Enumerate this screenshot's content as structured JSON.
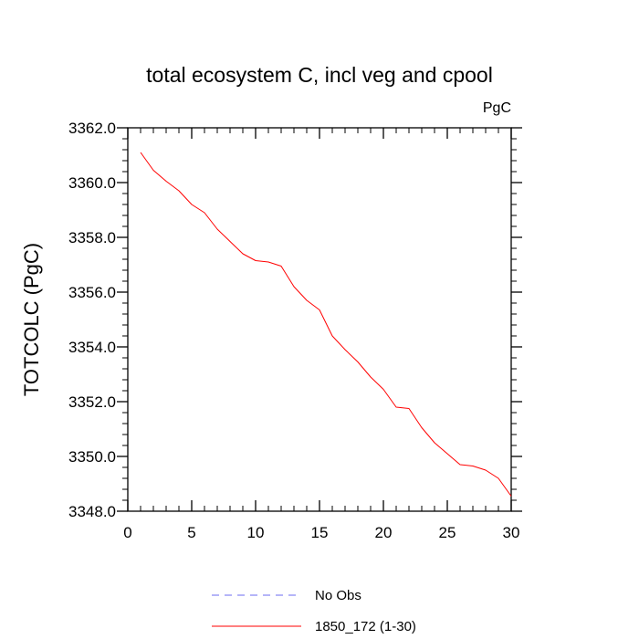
{
  "chart_data": {
    "type": "line",
    "title": "total ecosystem C, incl veg and cpool",
    "units": "PgC",
    "xlabel": "",
    "ylabel": "TOTCOLC  (PgC)",
    "xlim": [
      0,
      30
    ],
    "ylim": [
      3348.0,
      3362.0
    ],
    "x_ticks": [
      0,
      5,
      10,
      15,
      20,
      25,
      30
    ],
    "y_ticks": [
      3348.0,
      3350.0,
      3352.0,
      3354.0,
      3356.0,
      3358.0,
      3360.0,
      3362.0
    ],
    "y_tick_labels": [
      "3348.0",
      "3350.0",
      "3352.0",
      "3354.0",
      "3356.0",
      "3358.0",
      "3360.0",
      "3362.0"
    ],
    "grid": false,
    "legend_position": "bottom",
    "series": [
      {
        "name": "No Obs",
        "color": "#6b6bf0",
        "style": "dashed",
        "x": [],
        "values": []
      },
      {
        "name": "1850_172 (1-30)",
        "color": "#ff0000",
        "style": "solid",
        "x": [
          1,
          2,
          3,
          4,
          5,
          6,
          7,
          8,
          9,
          10,
          11,
          12,
          13,
          14,
          15,
          16,
          17,
          18,
          19,
          20,
          21,
          22,
          23,
          24,
          25,
          26,
          27,
          28,
          29,
          30
        ],
        "values": [
          3361.1,
          3360.45,
          3360.05,
          3359.7,
          3359.2,
          3358.9,
          3358.3,
          3357.85,
          3357.4,
          3357.15,
          3357.1,
          3356.95,
          3356.2,
          3355.7,
          3355.35,
          3354.4,
          3353.9,
          3353.45,
          3352.9,
          3352.45,
          3351.8,
          3351.75,
          3351.05,
          3350.5,
          3350.1,
          3349.7,
          3349.65,
          3349.5,
          3349.2,
          3348.55
        ]
      }
    ]
  }
}
